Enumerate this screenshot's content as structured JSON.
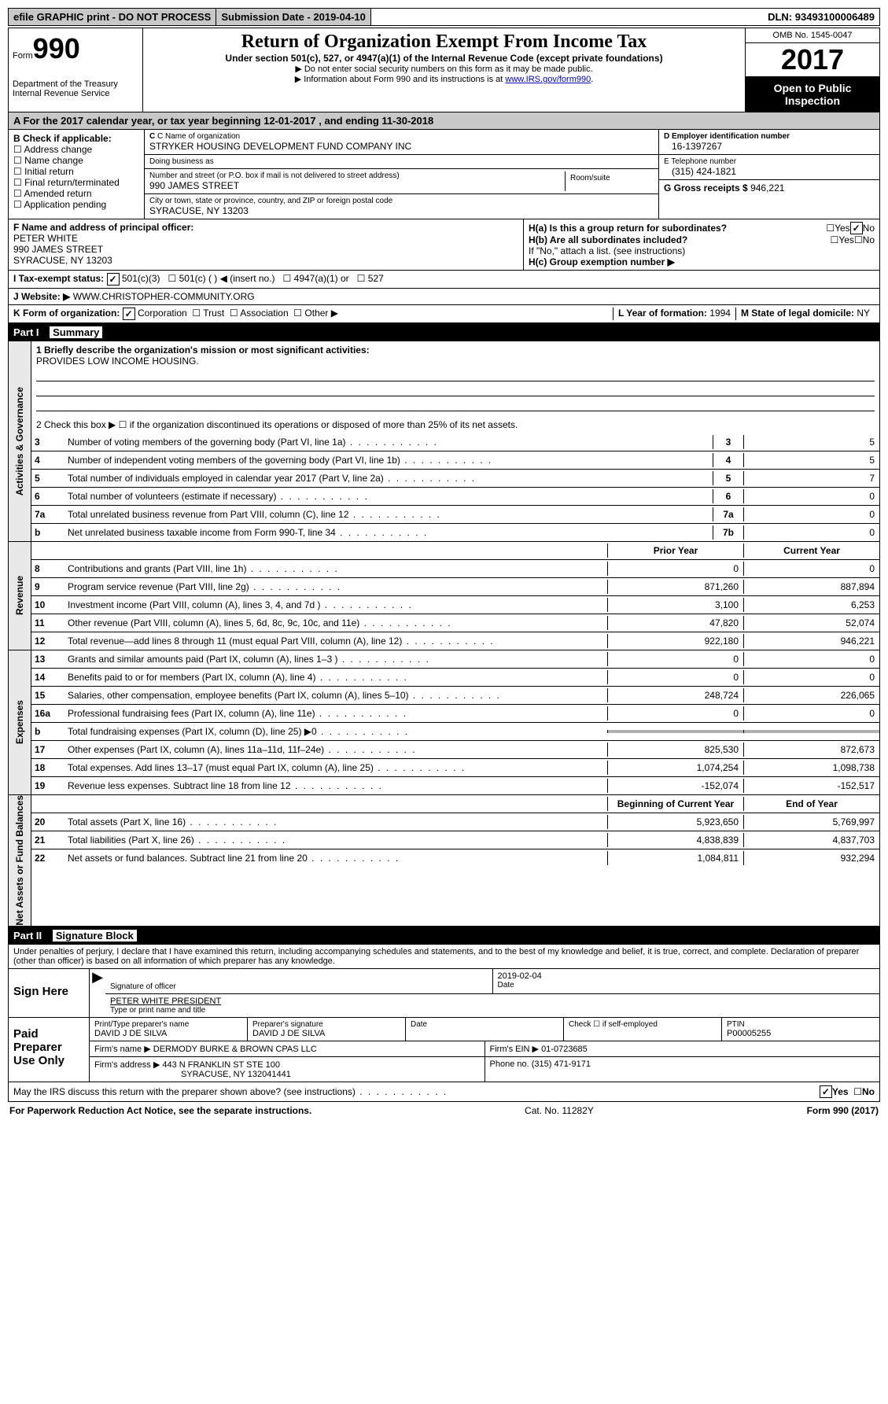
{
  "topbar": {
    "efile": "efile GRAPHIC print - DO NOT PROCESS",
    "subdate_label": "Submission Date - ",
    "subdate": "2019-04-10",
    "dln_label": "DLN: ",
    "dln": "93493100006489"
  },
  "header": {
    "form_word": "Form",
    "form_no": "990",
    "dept1": "Department of the Treasury",
    "dept2": "Internal Revenue Service",
    "title": "Return of Organization Exempt From Income Tax",
    "subtitle": "Under section 501(c), 527, or 4947(a)(1) of the Internal Revenue Code (except private foundations)",
    "note1": "▶ Do not enter social security numbers on this form as it may be made public.",
    "note2_pre": "▶ Information about Form 990 and its instructions is at ",
    "note2_link": "www.IRS.gov/form990",
    "omb": "OMB No. 1545-0047",
    "year": "2017",
    "open": "Open to Public Inspection"
  },
  "sectionA": {
    "a_text": "A  For the 2017 calendar year, or tax year beginning 12-01-2017    , and ending 11-30-2018",
    "b_label": "B Check if applicable:",
    "b_items": [
      "Address change",
      "Name change",
      "Initial return",
      "Final return/terminated",
      "Amended return",
      "Application pending"
    ],
    "c_name_label": "C Name of organization",
    "c_name": "STRYKER HOUSING DEVELOPMENT FUND COMPANY INC",
    "dba_label": "Doing business as",
    "dba": "",
    "street_label": "Number and street (or P.O. box if mail is not delivered to street address)",
    "room_label": "Room/suite",
    "street": "990 JAMES STREET",
    "city_label": "City or town, state or province, country, and ZIP or foreign postal code",
    "city": "SYRACUSE, NY  13203",
    "d_label": "D Employer identification number",
    "d_val": "16-1397267",
    "e_label": "E Telephone number",
    "e_val": "(315) 424-1821",
    "g_label": "G Gross receipts $ ",
    "g_val": "946,221",
    "f_label": "F Name and address of principal officer:",
    "f_name": "PETER WHITE",
    "f_street": "990 JAMES STREET",
    "f_city": "SYRACUSE, NY  13203",
    "ha_label": "H(a)  Is this a group return for subordinates?",
    "hb_label": "H(b)  Are all subordinates included?",
    "hb_note": "If \"No,\" attach a list. (see instructions)",
    "hc_label": "H(c)  Group exemption number ▶",
    "i_label": "I   Tax-exempt status:",
    "i_501c3": "501(c)(3)",
    "i_501c": "501(c) (   ) ◀ (insert no.)",
    "i_4947": "4947(a)(1) or",
    "i_527": "527",
    "j_label": "J   Website: ▶",
    "j_val": "WWW.CHRISTOPHER-COMMUNITY.ORG",
    "k_label": "K Form of organization:",
    "k_opts": [
      "Corporation",
      "Trust",
      "Association",
      "Other ▶"
    ],
    "l_label": "L Year of formation: ",
    "l_val": "1994",
    "m_label": "M State of legal domicile: ",
    "m_val": "NY"
  },
  "part1_label": "Part I",
  "part1_title": "Summary",
  "gov": {
    "label": "Activities & Governance",
    "l1_label": "1  Briefly describe the organization's mission or most significant activities:",
    "l1_val": "PROVIDES LOW INCOME HOUSING.",
    "l2": "2   Check this box ▶ ☐  if the organization discontinued its operations or disposed of more than 25% of its net assets.",
    "rows": [
      {
        "n": "3",
        "d": "Number of voting members of the governing body (Part VI, line 1a)",
        "b": "3",
        "v": "5"
      },
      {
        "n": "4",
        "d": "Number of independent voting members of the governing body (Part VI, line 1b)",
        "b": "4",
        "v": "5"
      },
      {
        "n": "5",
        "d": "Total number of individuals employed in calendar year 2017 (Part V, line 2a)",
        "b": "5",
        "v": "7"
      },
      {
        "n": "6",
        "d": "Total number of volunteers (estimate if necessary)",
        "b": "6",
        "v": "0"
      },
      {
        "n": "7a",
        "d": "Total unrelated business revenue from Part VIII, column (C), line 12",
        "b": "7a",
        "v": "0"
      },
      {
        "n": "b",
        "d": "Net unrelated business taxable income from Form 990-T, line 34",
        "b": "7b",
        "v": "0"
      }
    ]
  },
  "rev": {
    "label": "Revenue",
    "hdr_prior": "Prior Year",
    "hdr_curr": "Current Year",
    "rows": [
      {
        "n": "8",
        "d": "Contributions and grants (Part VIII, line 1h)",
        "p": "0",
        "c": "0"
      },
      {
        "n": "9",
        "d": "Program service revenue (Part VIII, line 2g)",
        "p": "871,260",
        "c": "887,894"
      },
      {
        "n": "10",
        "d": "Investment income (Part VIII, column (A), lines 3, 4, and 7d )",
        "p": "3,100",
        "c": "6,253"
      },
      {
        "n": "11",
        "d": "Other revenue (Part VIII, column (A), lines 5, 6d, 8c, 9c, 10c, and 11e)",
        "p": "47,820",
        "c": "52,074"
      },
      {
        "n": "12",
        "d": "Total revenue—add lines 8 through 11 (must equal Part VIII, column (A), line 12)",
        "p": "922,180",
        "c": "946,221"
      }
    ]
  },
  "exp": {
    "label": "Expenses",
    "rows": [
      {
        "n": "13",
        "d": "Grants and similar amounts paid (Part IX, column (A), lines 1–3 )",
        "p": "0",
        "c": "0"
      },
      {
        "n": "14",
        "d": "Benefits paid to or for members (Part IX, column (A), line 4)",
        "p": "0",
        "c": "0"
      },
      {
        "n": "15",
        "d": "Salaries, other compensation, employee benefits (Part IX, column (A), lines 5–10)",
        "p": "248,724",
        "c": "226,065"
      },
      {
        "n": "16a",
        "d": "Professional fundraising fees (Part IX, column (A), line 11e)",
        "p": "0",
        "c": "0"
      },
      {
        "n": "b",
        "d": "Total fundraising expenses (Part IX, column (D), line 25) ▶0",
        "p": "gray",
        "c": "gray"
      },
      {
        "n": "17",
        "d": "Other expenses (Part IX, column (A), lines 11a–11d, 11f–24e)",
        "p": "825,530",
        "c": "872,673"
      },
      {
        "n": "18",
        "d": "Total expenses. Add lines 13–17 (must equal Part IX, column (A), line 25)",
        "p": "1,074,254",
        "c": "1,098,738"
      },
      {
        "n": "19",
        "d": "Revenue less expenses. Subtract line 18 from line 12",
        "p": "-152,074",
        "c": "-152,517"
      }
    ]
  },
  "net": {
    "label": "Net Assets or Fund Balances",
    "hdr_begin": "Beginning of Current Year",
    "hdr_end": "End of Year",
    "rows": [
      {
        "n": "20",
        "d": "Total assets (Part X, line 16)",
        "p": "5,923,650",
        "c": "5,769,997"
      },
      {
        "n": "21",
        "d": "Total liabilities (Part X, line 26)",
        "p": "4,838,839",
        "c": "4,837,703"
      },
      {
        "n": "22",
        "d": "Net assets or fund balances. Subtract line 21 from line 20",
        "p": "1,084,811",
        "c": "932,294"
      }
    ]
  },
  "part2_label": "Part II",
  "part2_title": "Signature Block",
  "perjury": "Under penalties of perjury, I declare that I have examined this return, including accompanying schedules and statements, and to the best of my knowledge and belief, it is true, correct, and complete. Declaration of preparer (other than officer) is based on all information of which preparer has any knowledge.",
  "sign": {
    "label": "Sign Here",
    "sig_label": "Signature of officer",
    "date_label": "Date",
    "date_val": "2019-02-04",
    "name_label": "Type or print name and title",
    "name_val": "PETER WHITE PRESIDENT"
  },
  "paid": {
    "label": "Paid Preparer Use Only",
    "pt_label": "Print/Type preparer's name",
    "pt_val": "DAVID J DE SILVA",
    "ps_label": "Preparer's signature",
    "ps_val": "DAVID J DE SILVA",
    "pd_label": "Date",
    "check_label": "Check ☐ if self-employed",
    "ptin_label": "PTIN",
    "ptin_val": "P00005255",
    "firm_label": "Firm's name      ▶",
    "firm_val": "DERMODY BURKE & BROWN CPAS LLC",
    "ein_label": "Firm's EIN ▶",
    "ein_val": "01-0723685",
    "addr_label": "Firm's address ▶",
    "addr_val": "443 N FRANKLIN ST STE 100",
    "city_val": "SYRACUSE, NY  132041441",
    "phone_label": "Phone no. ",
    "phone_val": "(315) 471-9171"
  },
  "discuss": "May the IRS discuss this return with the preparer shown above? (see instructions)",
  "yes": "Yes",
  "no": "No",
  "footer": {
    "left": "For Paperwork Reduction Act Notice, see the separate instructions.",
    "mid": "Cat. No. 11282Y",
    "right": "Form 990 (2017)"
  }
}
